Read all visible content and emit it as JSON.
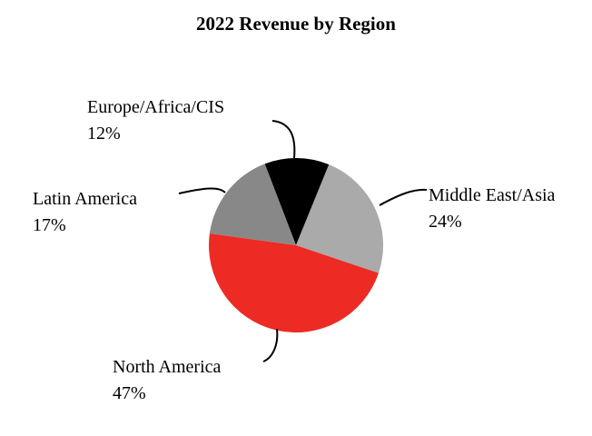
{
  "chart_data": {
    "type": "pie",
    "title": "2022 Revenue by Region",
    "categories": [
      "Europe/Africa/CIS",
      "Middle East/Asia",
      "North America",
      "Latin America"
    ],
    "values": [
      12,
      24,
      47,
      17
    ],
    "value_labels": [
      "12%",
      "24%",
      "47%",
      "17%"
    ],
    "colors": [
      "#000000",
      "#aaaaaa",
      "#ee2a24",
      "#888888"
    ]
  }
}
